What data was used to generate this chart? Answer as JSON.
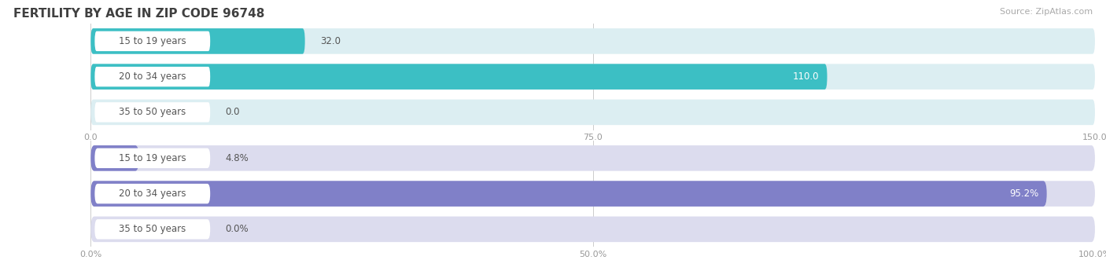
{
  "title": "FERTILITY BY AGE IN ZIP CODE 96748",
  "source": "Source: ZipAtlas.com",
  "top_chart": {
    "categories": [
      "15 to 19 years",
      "20 to 34 years",
      "35 to 50 years"
    ],
    "values": [
      32.0,
      110.0,
      0.0
    ],
    "xlim": [
      0,
      150
    ],
    "xticks": [
      0.0,
      75.0,
      150.0
    ],
    "xtick_labels": [
      "0.0",
      "75.0",
      "150.0"
    ],
    "bar_color": "#3cbfc4",
    "bar_bg_color": "#dceef2"
  },
  "bottom_chart": {
    "categories": [
      "15 to 19 years",
      "20 to 34 years",
      "35 to 50 years"
    ],
    "values": [
      4.8,
      95.2,
      0.0
    ],
    "xlim": [
      0,
      100
    ],
    "xticks": [
      0.0,
      50.0,
      100.0
    ],
    "xtick_labels": [
      "0.0%",
      "50.0%",
      "100.0%"
    ],
    "bar_color": "#8080c8",
    "bar_bg_color": "#dcdcee"
  },
  "title_color": "#404040",
  "title_fontsize": 11,
  "source_fontsize": 8,
  "source_color": "#aaaaaa",
  "category_fontsize": 8.5,
  "value_fontsize": 8.5,
  "tick_fontsize": 8,
  "bar_height": 0.72,
  "bar_gap": 0.28,
  "background_color": "#ffffff",
  "grid_color": "#cccccc",
  "label_box_color": "#ffffff",
  "label_text_color": "#555555",
  "value_inside_color": "#ffffff",
  "value_outside_color": "#555555"
}
